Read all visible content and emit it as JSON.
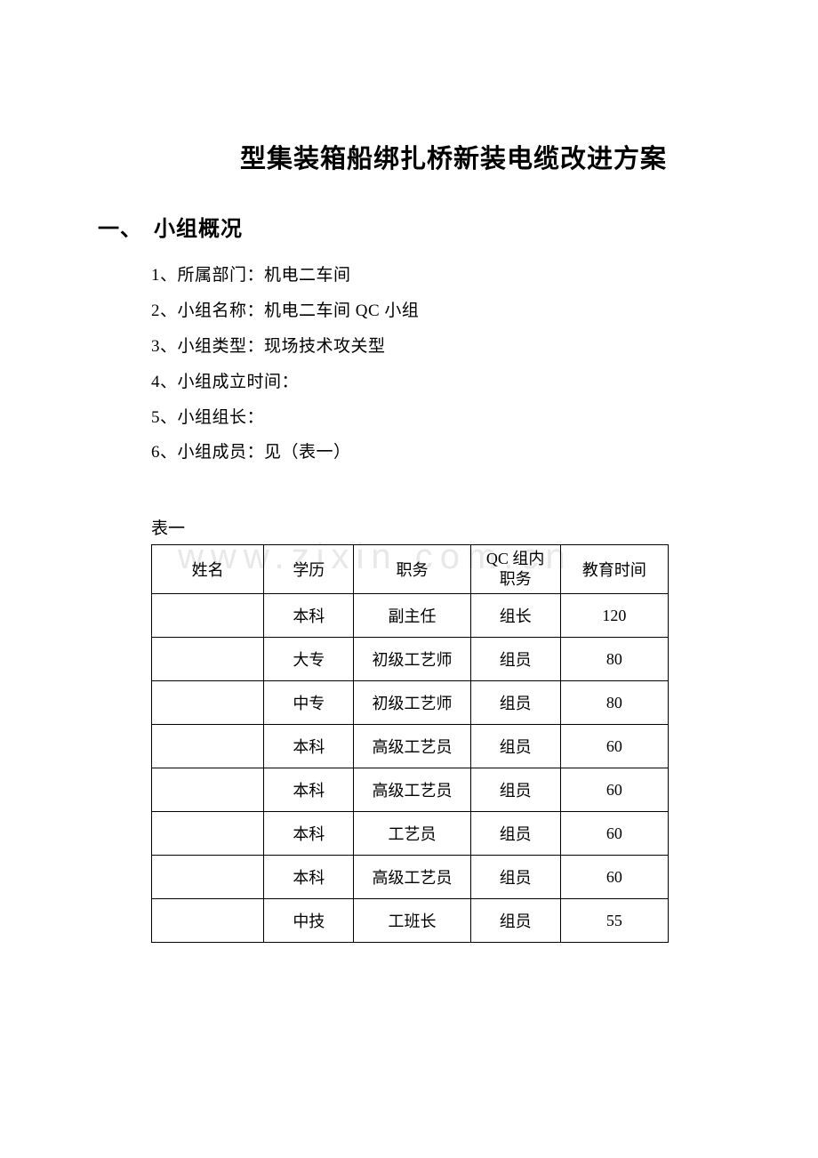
{
  "doc": {
    "title": "型集装箱船绑扎桥新装电缆改进方案",
    "watermark": "www.zixin.com.cn"
  },
  "section1": {
    "heading": "一、　小组概况",
    "items": {
      "i1": "1、所属部门：机电二车间",
      "i2": "2、小组名称：机电二车间 QC 小组",
      "i3": "3、小组类型：现场技术攻关型",
      "i4": "4、小组成立时间：",
      "i5": "5、小组组长：",
      "i6": "6、小组成员：见（表一）"
    }
  },
  "table": {
    "label": "表一",
    "headers": {
      "name": "姓名",
      "edu": "学历",
      "job": "职务",
      "qc_line1": "QC 组内",
      "qc_line2": "职务",
      "time": "教育时间"
    },
    "rows": [
      {
        "name": "",
        "edu": "本科",
        "job": "副主任",
        "qc": "组长",
        "time": "120"
      },
      {
        "name": "",
        "edu": "大专",
        "job": "初级工艺师",
        "qc": "组员",
        "time": "80"
      },
      {
        "name": "",
        "edu": "中专",
        "job": "初级工艺师",
        "qc": "组员",
        "time": "80"
      },
      {
        "name": "",
        "edu": "本科",
        "job": "高级工艺员",
        "qc": "组员",
        "time": "60"
      },
      {
        "name": "",
        "edu": "本科",
        "job": "高级工艺员",
        "qc": "组员",
        "time": "60"
      },
      {
        "name": "",
        "edu": "本科",
        "job": "工艺员",
        "qc": "组员",
        "time": "60"
      },
      {
        "name": "",
        "edu": "本科",
        "job": "高级工艺员",
        "qc": "组员",
        "time": "60"
      },
      {
        "name": "",
        "edu": "中技",
        "job": "工班长",
        "qc": "组员",
        "time": "55"
      }
    ]
  }
}
